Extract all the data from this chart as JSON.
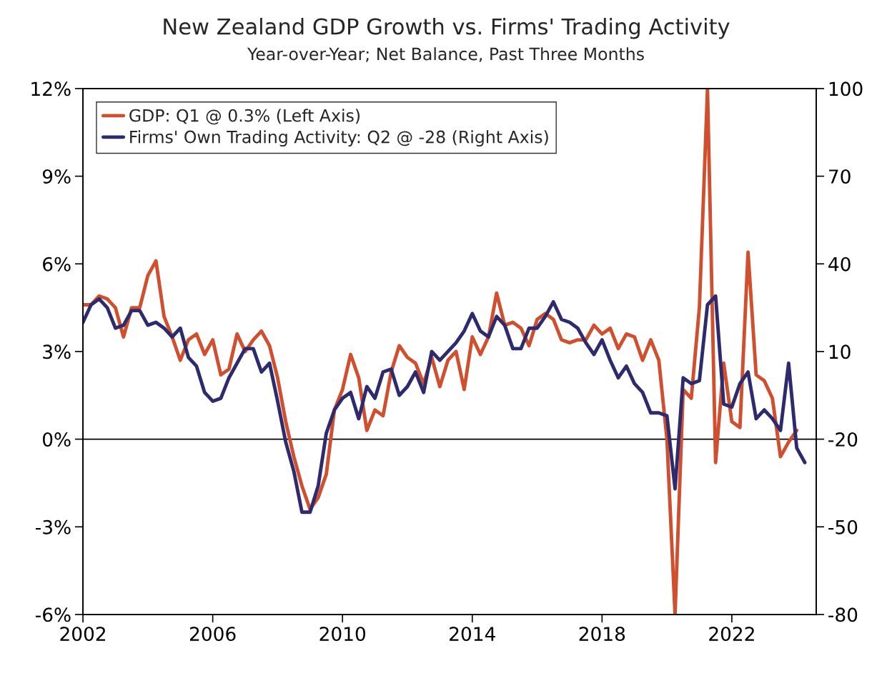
{
  "chart_data": {
    "type": "line",
    "title": "New Zealand GDP Growth vs. Firms' Trading Activity",
    "subtitle": "Year-over-Year; Net Balance, Past Three Months",
    "x": [
      2002.0,
      2002.25,
      2002.5,
      2002.75,
      2003.0,
      2003.25,
      2003.5,
      2003.75,
      2004.0,
      2004.25,
      2004.5,
      2004.75,
      2005.0,
      2005.25,
      2005.5,
      2005.75,
      2006.0,
      2006.25,
      2006.5,
      2006.75,
      2007.0,
      2007.25,
      2007.5,
      2007.75,
      2008.0,
      2008.25,
      2008.5,
      2008.75,
      2009.0,
      2009.25,
      2009.5,
      2009.75,
      2010.0,
      2010.25,
      2010.5,
      2010.75,
      2011.0,
      2011.25,
      2011.5,
      2011.75,
      2012.0,
      2012.25,
      2012.5,
      2012.75,
      2013.0,
      2013.25,
      2013.5,
      2013.75,
      2014.0,
      2014.25,
      2014.5,
      2014.75,
      2015.0,
      2015.25,
      2015.5,
      2015.75,
      2016.0,
      2016.25,
      2016.5,
      2016.75,
      2017.0,
      2017.25,
      2017.5,
      2017.75,
      2018.0,
      2018.25,
      2018.5,
      2018.75,
      2019.0,
      2019.25,
      2019.5,
      2019.75,
      2020.0,
      2020.25,
      2020.5,
      2020.75,
      2021.0,
      2021.25,
      2021.5,
      2021.75,
      2022.0,
      2022.25,
      2022.5,
      2022.75,
      2023.0,
      2023.25,
      2023.5,
      2023.75,
      2024.0,
      2024.25
    ],
    "series": [
      {
        "name": "GDP: Q1 @ 0.3% (Left Axis)",
        "color": "#d04f2e",
        "axis": "y",
        "x": [
          2002.0,
          2002.25,
          2002.5,
          2002.75,
          2003.0,
          2003.25,
          2003.5,
          2003.75,
          2004.0,
          2004.25,
          2004.5,
          2004.75,
          2005.0,
          2005.25,
          2005.5,
          2005.75,
          2006.0,
          2006.25,
          2006.5,
          2006.75,
          2007.0,
          2007.25,
          2007.5,
          2007.75,
          2008.0,
          2008.25,
          2008.5,
          2008.75,
          2009.0,
          2009.25,
          2009.5,
          2009.75,
          2010.0,
          2010.25,
          2010.5,
          2010.75,
          2011.0,
          2011.25,
          2011.5,
          2011.75,
          2012.0,
          2012.25,
          2012.5,
          2012.75,
          2013.0,
          2013.25,
          2013.5,
          2013.75,
          2014.0,
          2014.25,
          2014.5,
          2014.75,
          2015.0,
          2015.25,
          2015.5,
          2015.75,
          2016.0,
          2016.25,
          2016.5,
          2016.75,
          2017.0,
          2017.25,
          2017.5,
          2017.75,
          2018.0,
          2018.25,
          2018.5,
          2018.75,
          2019.0,
          2019.25,
          2019.5,
          2019.75,
          2020.0,
          2020.25,
          2020.5,
          2020.75,
          2021.0,
          2021.25,
          2021.5,
          2021.75,
          2022.0,
          2022.25,
          2022.5,
          2022.75,
          2023.0,
          2023.25,
          2023.5,
          2023.75,
          2024.0
        ],
        "values": [
          4.6,
          4.6,
          4.9,
          4.8,
          4.5,
          3.5,
          4.5,
          4.5,
          5.6,
          6.1,
          4.2,
          3.5,
          2.7,
          3.4,
          3.6,
          2.9,
          3.4,
          2.2,
          2.4,
          3.6,
          3.0,
          3.4,
          3.7,
          3.2,
          2.1,
          0.6,
          -0.6,
          -1.6,
          -2.4,
          -2.0,
          -1.2,
          1.0,
          1.7,
          2.9,
          2.1,
          0.3,
          1.0,
          0.8,
          2.3,
          3.2,
          2.8,
          2.6,
          1.9,
          2.8,
          1.8,
          2.7,
          3.0,
          1.7,
          3.5,
          2.9,
          3.5,
          5.0,
          3.9,
          4.0,
          3.8,
          3.2,
          4.1,
          4.3,
          4.1,
          3.4,
          3.3,
          3.4,
          3.4,
          3.9,
          3.6,
          3.8,
          3.1,
          3.6,
          3.5,
          2.7,
          3.4,
          2.7,
          0.0,
          -6.0,
          1.7,
          1.4,
          4.5,
          12.0,
          -0.8,
          2.6,
          0.6,
          0.4,
          6.4,
          2.2,
          2.0,
          1.4,
          -0.6,
          -0.1,
          0.3
        ]
      },
      {
        "name": "Firms' Own Trading Activity: Q2 @ -28 (Right Axis)",
        "color": "#2e2a6e",
        "axis": "y2",
        "values": [
          20,
          26,
          28,
          25,
          18,
          19,
          24,
          24,
          19,
          20,
          18,
          15,
          18,
          8,
          5,
          -4,
          -7,
          -6,
          1,
          6,
          11,
          11,
          3,
          6,
          -7,
          -21,
          -31,
          -45,
          -45,
          -36,
          -18,
          -10,
          -6,
          -4,
          -13,
          -2,
          -6,
          3,
          4,
          -5,
          -2,
          3,
          -4,
          10,
          7,
          10,
          13,
          17,
          23,
          17,
          15,
          22,
          19,
          11,
          11,
          18,
          18,
          22,
          27,
          21,
          20,
          18,
          13,
          9,
          14,
          7,
          1,
          5,
          -1,
          -4,
          -11,
          -11,
          -12,
          -37,
          1,
          -1,
          0,
          26,
          29,
          -8,
          -9,
          -1,
          3,
          -13,
          -10,
          -13,
          -17,
          6,
          -23,
          -28
        ]
      }
    ],
    "xlim": [
      2002,
      2024.6
    ],
    "xticks": [
      2002,
      2006,
      2010,
      2014,
      2018,
      2022
    ],
    "ylim": [
      -6,
      12
    ],
    "yticks": [
      {
        "value": -6,
        "label": "-6%"
      },
      {
        "value": -3,
        "label": "-3%"
      },
      {
        "value": 0,
        "label": "0%"
      },
      {
        "value": 3,
        "label": "3%"
      },
      {
        "value": 6,
        "label": "6%"
      },
      {
        "value": 9,
        "label": "9%"
      },
      {
        "value": 12,
        "label": "12%"
      }
    ],
    "y2lim": [
      -80,
      100
    ],
    "y2ticks": [
      -80,
      -50,
      -20,
      10,
      40,
      70,
      100
    ],
    "ref_lines": [
      {
        "axis": "y",
        "value": 0,
        "color": "#000000"
      }
    ],
    "legend": "top left",
    "grid": false,
    "marker": "none",
    "line_style": "solid"
  }
}
